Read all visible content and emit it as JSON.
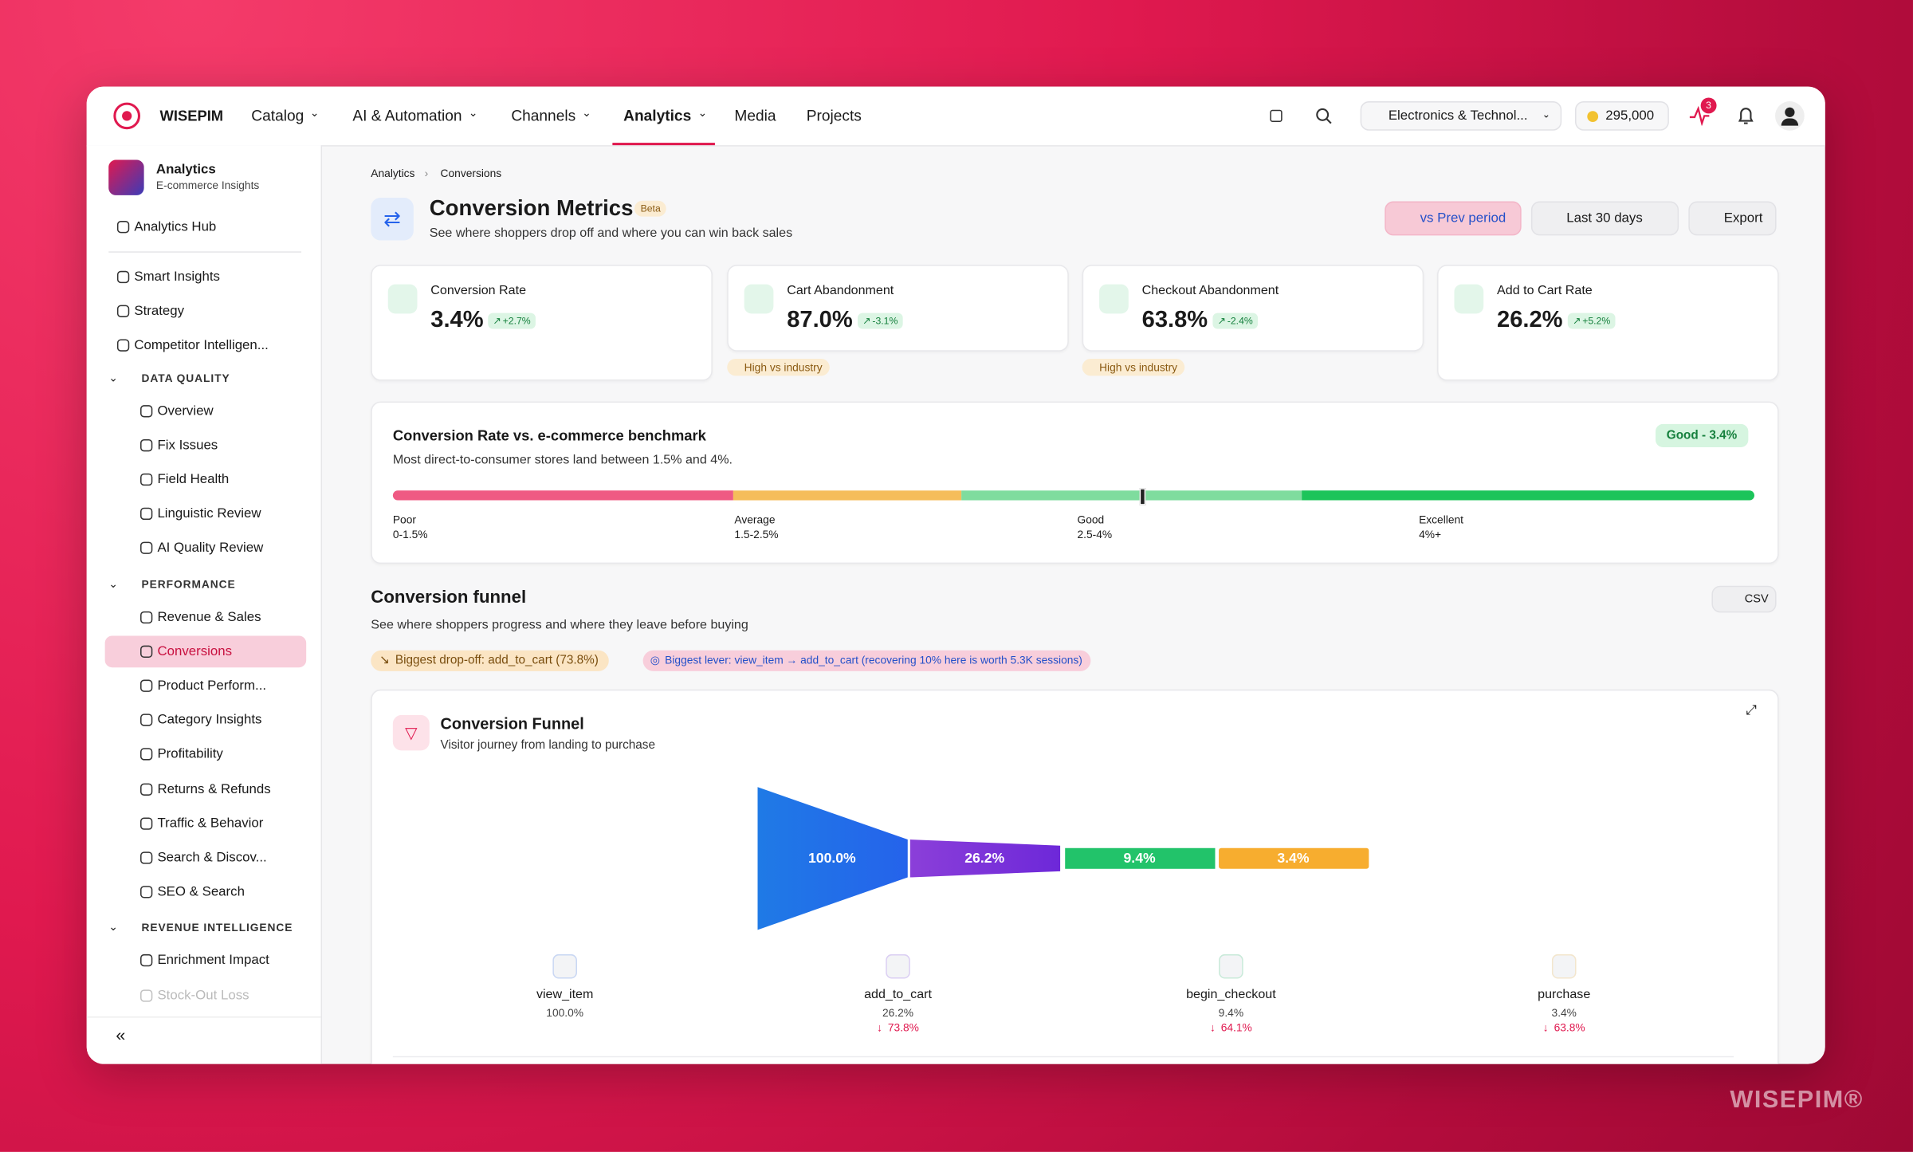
{
  "nav": {
    "brand": "WISEPIM",
    "items": [
      "Catalog",
      "AI & Automation",
      "Channels",
      "Analytics",
      "Media",
      "Projects"
    ],
    "workspace": "Electronics & Technol...",
    "credits": "295,000",
    "notifications": "3"
  },
  "sidebar": {
    "title": "Analytics",
    "subtitle": "E-commerce Insights",
    "top": [
      "Analytics Hub"
    ],
    "items": [
      "Smart Insights",
      "Strategy",
      "Competitor Intelligen..."
    ],
    "sections": [
      {
        "title": "DATA QUALITY",
        "items": [
          "Overview",
          "Fix Issues",
          "Field Health",
          "Linguistic Review",
          "AI Quality Review"
        ]
      },
      {
        "title": "PERFORMANCE",
        "items": [
          "Revenue & Sales",
          "Conversions",
          "Product Perform...",
          "Category Insights",
          "Profitability",
          "Returns & Refunds",
          "Traffic & Behavior",
          "Search & Discov...",
          "SEO & Search"
        ]
      },
      {
        "title": "REVENUE INTELLIGENCE",
        "items": [
          "Enrichment Impact",
          "Stock-Out Loss"
        ]
      }
    ]
  },
  "breadcrumb": [
    "Analytics",
    "Conversions"
  ],
  "page": {
    "title": "Conversion Metrics",
    "badge": "Beta",
    "subtitle": "See where shoppers drop off and where you can win back sales",
    "actions": [
      "vs Prev period",
      "Last 30 days",
      "Export"
    ]
  },
  "kpis": [
    {
      "label": "Conversion Rate",
      "value": "3.4%",
      "change": "+2.7%"
    },
    {
      "label": "Cart Abandonment",
      "value": "87.0%",
      "change": "-3.1%",
      "tag": "High vs industry"
    },
    {
      "label": "Checkout Abandonment",
      "value": "63.8%",
      "change": "-2.4%",
      "tag": "High vs industry"
    },
    {
      "label": "Add to Cart Rate",
      "value": "26.2%",
      "change": "+5.2%"
    }
  ],
  "benchmark": {
    "title": "Conversion Rate vs. e-commerce benchmark",
    "subtitle": "Most direct-to-consumer stores land between 1.5% and 4%.",
    "badge": "Good - 3.4%",
    "segments": [
      {
        "name": "Poor",
        "range": "0-1.5%"
      },
      {
        "name": "Average",
        "range": "1.5-2.5%"
      },
      {
        "name": "Good",
        "range": "2.5-4%"
      },
      {
        "name": "Excellent",
        "range": "4%+"
      }
    ]
  },
  "funnel_section": {
    "title": "Conversion funnel",
    "subtitle": "See where shoppers progress and where they leave before buying",
    "csv": "CSV",
    "chips": [
      "Biggest drop-off: add_to_cart (73.8%)",
      "Biggest lever: view_item → add_to_cart (recovering 10% here is worth 5.3K sessions)"
    ]
  },
  "funnel": {
    "title": "Conversion Funnel",
    "subtitle": "Visitor journey from landing to purchase",
    "stages": [
      {
        "name": "view_item",
        "bar": "100.0%",
        "pct": "100.0%"
      },
      {
        "name": "add_to_cart",
        "bar": "26.2%",
        "pct": "26.2%",
        "drop": "73.8%"
      },
      {
        "name": "begin_checkout",
        "bar": "9.4%",
        "pct": "9.4%",
        "drop": "64.1%"
      },
      {
        "name": "purchase",
        "bar": "3.4%",
        "pct": "3.4%",
        "drop": "63.8%"
      }
    ]
  },
  "watermark": "WISEPIM®"
}
